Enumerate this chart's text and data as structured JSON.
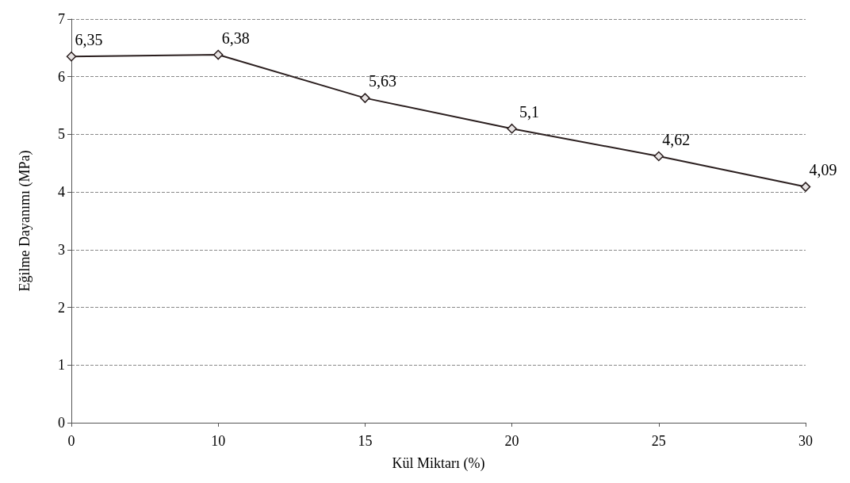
{
  "chart_data": {
    "type": "line",
    "xlabel": "Kül Miktarı (%)",
    "ylabel": "Eğilme Dayanımı (MPa)",
    "categories": [
      "0",
      "10",
      "15",
      "20",
      "25",
      "30"
    ],
    "series": [
      {
        "color": "#2b1f1f",
        "values": [
          6.35,
          6.38,
          5.63,
          5.1,
          4.62,
          4.09
        ],
        "value_labels": [
          "6,35",
          "6,38",
          "5,63",
          "5,1",
          "4,62",
          "4,09"
        ]
      }
    ],
    "ylim": [
      0,
      7
    ],
    "yticks": [
      0,
      1,
      2,
      3,
      4,
      5,
      6,
      7
    ],
    "grid": "y",
    "marker": "diamond",
    "line_style": "solid"
  }
}
